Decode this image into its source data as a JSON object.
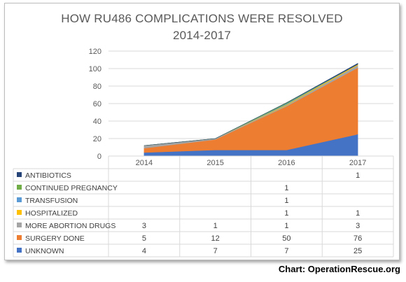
{
  "chart_data": {
    "type": "area",
    "stacked": true,
    "title": "HOW RU486 COMPLICATIONS WERE RESOLVED",
    "subtitle": "2014-2017",
    "categories": [
      "2014",
      "2015",
      "2016",
      "2017"
    ],
    "ylim": [
      0,
      120
    ],
    "yticks": [
      0,
      20,
      40,
      60,
      80,
      100,
      120
    ],
    "grid": true,
    "legend": "data-table-left",
    "series": [
      {
        "name": "UNKNOWN",
        "color": "#4472c4",
        "values": [
          4,
          7,
          7,
          25
        ],
        "labels": [
          "4",
          "7",
          "7",
          "25"
        ]
      },
      {
        "name": "SURGERY DONE",
        "color": "#ed7d31",
        "values": [
          5,
          12,
          50,
          76
        ],
        "labels": [
          "5",
          "12",
          "50",
          "76"
        ]
      },
      {
        "name": "MORE ABORTION DRUGS",
        "color": "#a5a5a5",
        "values": [
          3,
          1,
          1,
          3
        ],
        "labels": [
          "3",
          "1",
          "1",
          "3"
        ]
      },
      {
        "name": "HOSPITALIZED",
        "color": "#ffc000",
        "values": [
          0,
          0,
          1,
          1
        ],
        "labels": [
          "",
          "",
          "1",
          "1"
        ]
      },
      {
        "name": "TRANSFUSION",
        "color": "#5b9bd5",
        "values": [
          0,
          0,
          1,
          0
        ],
        "labels": [
          "",
          "",
          "1",
          ""
        ]
      },
      {
        "name": "CONTINUED PREGNANCY",
        "color": "#70ad47",
        "values": [
          0,
          0,
          1,
          0
        ],
        "labels": [
          "",
          "",
          "1",
          ""
        ]
      },
      {
        "name": "ANTIBIOTICS",
        "color": "#264478",
        "values": [
          0,
          0,
          0,
          1
        ],
        "labels": [
          "",
          "",
          "",
          "1"
        ]
      }
    ]
  },
  "source": "Chart: OperationRescue.org"
}
